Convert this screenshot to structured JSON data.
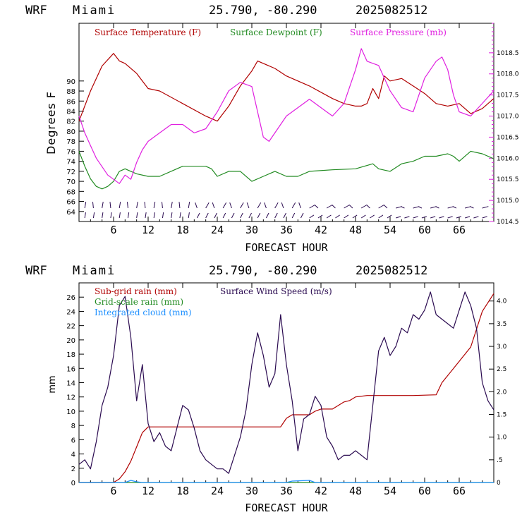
{
  "header": {
    "model": "WRF",
    "location": "Miami",
    "coords": "25.790, -80.290",
    "run": "2025082512"
  },
  "colors": {
    "temperature": "#b00000",
    "dewpoint": "#228b22",
    "pressure": "#e020e0",
    "wind": "#2a0a50",
    "subgrid": "#b00000",
    "gridscale": "#228b22",
    "cloud": "#1e90ff"
  },
  "chart_data": [
    {
      "type": "line",
      "xlabel": "FORECAST HOUR",
      "ylabel": "Degrees F",
      "xlim": [
        0,
        72
      ],
      "x_ticks": [
        "6",
        "12",
        "18",
        "24",
        "30",
        "36",
        "42",
        "48",
        "54",
        "60",
        "66"
      ],
      "ylim": [
        62,
        101.5
      ],
      "y_ticks": [
        "64",
        "66",
        "68",
        "70",
        "72",
        "74",
        "76",
        "78",
        "80",
        "82",
        "84",
        "86",
        "88",
        "90"
      ],
      "y2lim": [
        1014.5,
        1019.2
      ],
      "y2_ticks": [
        "1014.5",
        "1015.0",
        "1015.5",
        "1016.0",
        "1016.5",
        "1017.0",
        "1017.5",
        "1018.0",
        "1018.5"
      ],
      "series": [
        {
          "name": "Surface Temperature (F)",
          "axis": "left",
          "x": [
            0,
            2,
            4,
            6,
            7,
            8,
            10,
            12,
            14,
            18,
            22,
            24,
            26,
            28,
            30,
            31,
            32,
            34,
            36,
            40,
            44,
            46,
            48,
            49,
            50,
            51,
            52,
            53,
            54,
            56,
            58,
            60,
            62,
            64,
            66,
            68,
            70,
            72
          ],
          "values": [
            82,
            88,
            93,
            95.5,
            94,
            93.5,
            91.5,
            88.5,
            88,
            85.5,
            83,
            82,
            85,
            89,
            92,
            94,
            93.5,
            92.5,
            91,
            89,
            86.5,
            85.5,
            85,
            85,
            85.5,
            88.5,
            86.5,
            91,
            90,
            90.5,
            89,
            87.5,
            85.5,
            85,
            85.5,
            83.5,
            84.5,
            86.5
          ]
        },
        {
          "name": "Surface Dewpoint (F)",
          "axis": "left",
          "x": [
            0,
            1,
            2,
            3,
            4,
            5,
            6,
            7,
            8,
            9,
            10,
            12,
            14,
            18,
            22,
            23,
            24,
            26,
            28,
            30,
            32,
            34,
            36,
            38,
            40,
            44,
            48,
            51,
            52,
            54,
            56,
            58,
            60,
            62,
            64,
            65,
            66,
            68,
            70,
            72
          ],
          "values": [
            76,
            73,
            70.5,
            69,
            68.5,
            69,
            70,
            72,
            72.5,
            72,
            71.5,
            71,
            71,
            73,
            73,
            72.5,
            71,
            72,
            72,
            70,
            71,
            72,
            71,
            71,
            72,
            72.3,
            72.5,
            73.5,
            72.5,
            72,
            73.5,
            74,
            75,
            75,
            75.5,
            75,
            74,
            76,
            75.5,
            74.5
          ]
        },
        {
          "name": "Surface Pressure (mb)",
          "axis": "right",
          "x": [
            0,
            1,
            2,
            3,
            4,
            5,
            6,
            7,
            8,
            9,
            10,
            11,
            12,
            14,
            16,
            18,
            20,
            22,
            24,
            26,
            28,
            30,
            31,
            32,
            33,
            34,
            36,
            38,
            40,
            42,
            44,
            46,
            48,
            49,
            50,
            52,
            54,
            56,
            58,
            60,
            62,
            63,
            64,
            65,
            66,
            68,
            70,
            72
          ],
          "values": [
            1017.0,
            1016.6,
            1016.3,
            1016.0,
            1015.8,
            1015.6,
            1015.5,
            1015.4,
            1015.6,
            1015.5,
            1015.9,
            1016.2,
            1016.4,
            1016.6,
            1016.8,
            1016.8,
            1016.6,
            1016.7,
            1017.1,
            1017.6,
            1017.8,
            1017.7,
            1017.1,
            1016.5,
            1016.4,
            1016.6,
            1017.0,
            1017.2,
            1017.4,
            1017.2,
            1017.0,
            1017.3,
            1018.1,
            1018.6,
            1018.3,
            1018.2,
            1017.6,
            1017.2,
            1017.1,
            1017.9,
            1018.3,
            1018.4,
            1018.1,
            1017.5,
            1017.1,
            1017.0,
            1017.3,
            1017.6
          ]
        }
      ]
    },
    {
      "type": "line",
      "xlabel": "FORECAST HOUR",
      "ylabel": "mm",
      "xlim": [
        0,
        72
      ],
      "x_ticks": [
        "6",
        "12",
        "18",
        "24",
        "30",
        "36",
        "42",
        "48",
        "54",
        "60",
        "66"
      ],
      "ylim": [
        0,
        28
      ],
      "y_ticks": [
        "0",
        "2",
        "4",
        "6",
        "8",
        "10",
        "12",
        "14",
        "16",
        "18",
        "20",
        "22",
        "24",
        "26"
      ],
      "y2lim": [
        0,
        4.4
      ],
      "y2_ticks": [
        "0",
        ".5",
        "1.0",
        "1.5",
        "2.0",
        "2.5",
        "3.0",
        "3.5",
        "4.0"
      ],
      "series": [
        {
          "name": "Sub-grid rain (mm)",
          "axis": "left",
          "x": [
            0,
            6,
            7,
            8,
            9,
            10,
            11,
            12,
            14,
            18,
            24,
            30,
            35,
            36,
            37,
            40,
            41,
            42,
            44,
            46,
            47,
            48,
            50,
            54,
            58,
            62,
            63,
            64,
            66,
            68,
            70,
            72
          ],
          "values": [
            0,
            0,
            0.5,
            1.5,
            3,
            5,
            7,
            7.8,
            7.8,
            7.8,
            7.8,
            7.8,
            7.8,
            9,
            9.5,
            9.5,
            10,
            10.3,
            10.3,
            11.3,
            11.5,
            12,
            12.2,
            12.2,
            12.2,
            12.3,
            14,
            15,
            17,
            19,
            24,
            26.5
          ]
        },
        {
          "name": "Grid-scale rain (mm)",
          "axis": "left",
          "x": [
            0,
            72
          ],
          "values": [
            0,
            0
          ]
        },
        {
          "name": "Integrated cloud (mm)",
          "axis": "left",
          "x": [
            0,
            8,
            9,
            10,
            11,
            36,
            37,
            40,
            41,
            72
          ],
          "values": [
            0,
            0,
            0.3,
            0.1,
            0,
            0,
            0.2,
            0.3,
            0,
            0
          ]
        },
        {
          "name": "Surface Wind Speed (m/s)",
          "axis": "right",
          "x": [
            0,
            1,
            2,
            3,
            4,
            5,
            6,
            7,
            8,
            9,
            10,
            11,
            12,
            13,
            14,
            15,
            16,
            17,
            18,
            19,
            20,
            21,
            22,
            23,
            24,
            25,
            26,
            27,
            28,
            29,
            30,
            31,
            32,
            33,
            34,
            35,
            36,
            37,
            38,
            39,
            40,
            41,
            42,
            43,
            44,
            45,
            46,
            47,
            48,
            49,
            50,
            51,
            52,
            53,
            54,
            55,
            56,
            57,
            58,
            59,
            60,
            61,
            62,
            63,
            64,
            65,
            66,
            67,
            68,
            69,
            70,
            71,
            72
          ],
          "values": [
            0.4,
            0.5,
            0.3,
            0.9,
            1.7,
            2.1,
            2.8,
            3.9,
            4.1,
            3.2,
            1.8,
            2.6,
            1.3,
            0.9,
            1.1,
            0.8,
            0.7,
            1.2,
            1.7,
            1.6,
            1.2,
            0.7,
            0.5,
            0.4,
            0.3,
            0.3,
            0.2,
            0.6,
            1.0,
            1.6,
            2.6,
            3.3,
            2.8,
            2.1,
            2.4,
            3.7,
            2.6,
            1.8,
            0.7,
            1.4,
            1.5,
            1.9,
            1.7,
            1.0,
            0.8,
            0.5,
            0.6,
            0.6,
            0.7,
            0.6,
            0.5,
            1.7,
            2.9,
            3.2,
            2.8,
            3.0,
            3.4,
            3.3,
            3.7,
            3.6,
            3.8,
            4.2,
            3.7,
            3.6,
            3.5,
            3.4,
            3.8,
            4.2,
            3.9,
            3.4,
            2.2,
            1.8,
            1.6
          ]
        }
      ]
    }
  ]
}
